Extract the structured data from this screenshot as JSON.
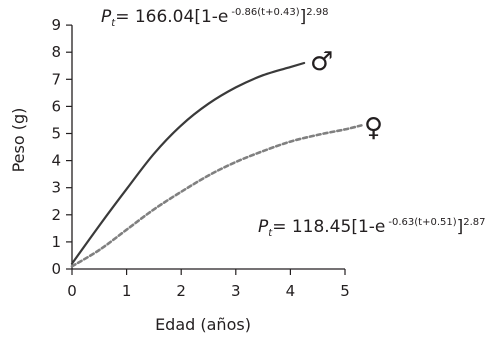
{
  "chart_data": {
    "type": "line",
    "xlabel": "Edad (años)",
    "ylabel": "Peso (g)",
    "xlim": [
      0,
      5.6
    ],
    "ylim": [
      0,
      9
    ],
    "xticks": [
      0,
      1,
      2,
      3,
      4,
      5
    ],
    "yticks": [
      0,
      1,
      2,
      3,
      4,
      5,
      6,
      7,
      8,
      9
    ],
    "grid": false,
    "series": [
      {
        "name": "♂",
        "style": "solid",
        "color": "#3a3a3a",
        "x": [
          0,
          0.5,
          1,
          1.5,
          2,
          2.5,
          3,
          3.5,
          4,
          4.25
        ],
        "y": [
          0.2,
          1.6,
          2.95,
          4.25,
          5.3,
          6.1,
          6.7,
          7.15,
          7.45,
          7.6
        ]
      },
      {
        "name": "♀",
        "style": "dashed",
        "color": "#808080",
        "x": [
          0,
          0.5,
          1,
          1.5,
          2,
          2.5,
          3,
          3.5,
          4,
          4.5,
          5,
          5.3
        ],
        "y": [
          0.1,
          0.7,
          1.45,
          2.2,
          2.85,
          3.45,
          3.95,
          4.35,
          4.7,
          4.95,
          5.15,
          5.3
        ]
      }
    ],
    "annotations": {
      "male_eq": {
        "P": "P",
        "sub": "t",
        "text": "= 166.04[1-e",
        "exp": "-0.86(t+0.43)",
        "close": "]",
        "pow": "2.98"
      },
      "female_eq": {
        "P": "P",
        "sub": "t",
        "text": "= 118.45[1-e",
        "exp": "-0.63(t+0.51)",
        "close": "]",
        "pow": "2.87"
      }
    }
  }
}
